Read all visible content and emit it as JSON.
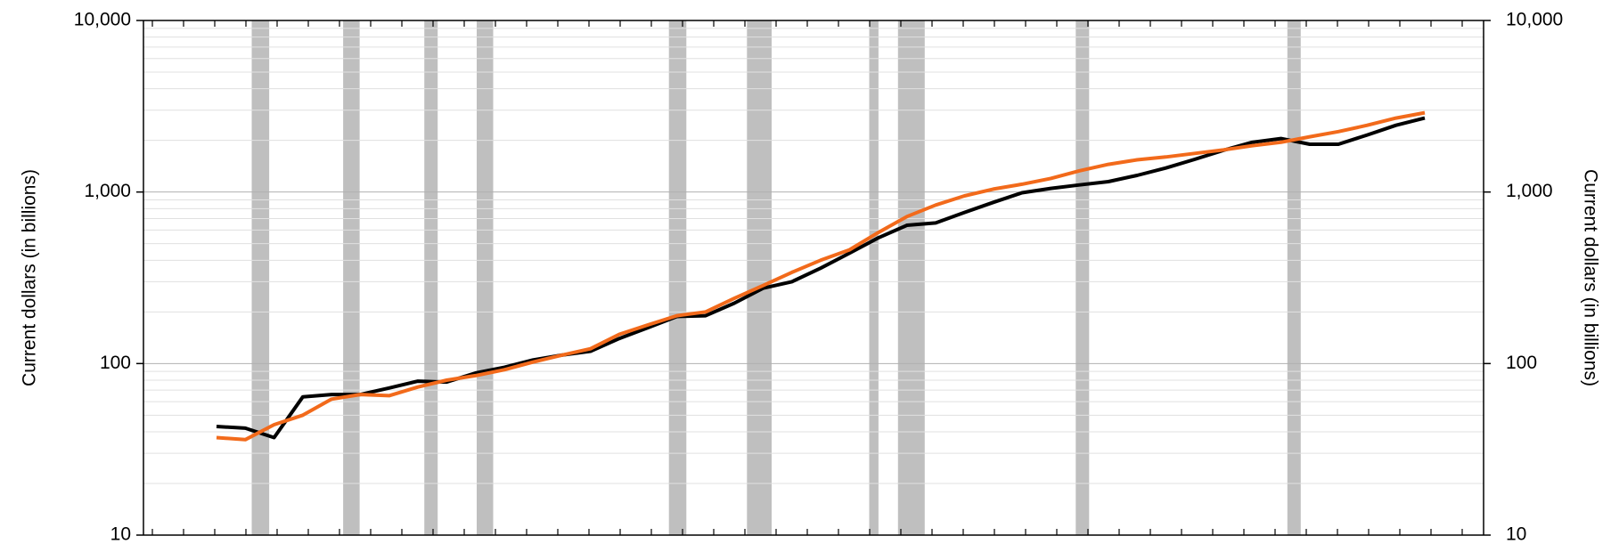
{
  "chart_data": {
    "type": "line",
    "ylabel": "Current dollars (in billions)",
    "y2label": "Current dollars (in billions)",
    "log_scale": true,
    "grid": true,
    "ylim": [
      10,
      10000
    ],
    "yticks": [
      10,
      100,
      {
        "value": 1000,
        "label": "1,000"
      },
      {
        "value": 10000,
        "label": "10,000"
      }
    ],
    "y2lim": [
      10,
      10000
    ],
    "y2ticks": [
      10,
      100,
      {
        "value": 1000,
        "label": "1,000"
      },
      {
        "value": 10000,
        "label": "10,000"
      }
    ],
    "series": [
      {
        "color": "#000000",
        "values": [
          43,
          42,
          37,
          64,
          66,
          66,
          72,
          79,
          78,
          88,
          95,
          105,
          112,
          118,
          140,
          162,
          188,
          190,
          225,
          275,
          300,
          360,
          440,
          540,
          640,
          660,
          760,
          870,
          990,
          1050,
          1100,
          1150,
          1250,
          1380,
          1550,
          1750,
          1950,
          2050,
          1900,
          1900,
          2150,
          2450,
          2700
        ]
      },
      {
        "color": "#f26a1b",
        "values": [
          37,
          36,
          44,
          50,
          62,
          66,
          65,
          73,
          80,
          85,
          92,
          102,
          112,
          122,
          148,
          168,
          190,
          200,
          240,
          285,
          340,
          400,
          460,
          580,
          720,
          840,
          950,
          1040,
          1110,
          1200,
          1330,
          1450,
          1540,
          1600,
          1680,
          1760,
          1860,
          1950,
          2100,
          2250,
          2450,
          2700,
          2900
        ]
      }
    ]
  }
}
